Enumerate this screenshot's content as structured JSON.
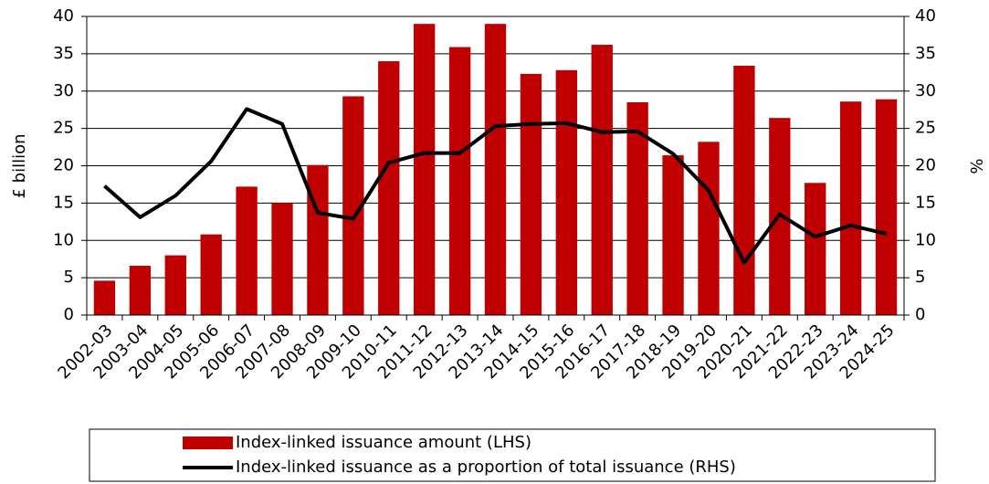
{
  "chart_data": {
    "type": "combo",
    "categories": [
      "2002-03",
      "2003-04",
      "2004-05",
      "2005-06",
      "2006-07",
      "2007-08",
      "2008-09",
      "2009-10",
      "2010-11",
      "2011-12",
      "2012-13",
      "2013-14",
      "2014-15",
      "2015-16",
      "2016-17",
      "2017-18",
      "2018-19",
      "2019-20",
      "2020-21",
      "2021-22",
      "2022-23",
      "2023-24",
      "2024-25"
    ],
    "series": [
      {
        "name": "Index-linked issuance amount (LHS)",
        "type": "bar",
        "color": "#c00000",
        "values": [
          4.6,
          6.6,
          8.0,
          10.8,
          17.2,
          15.0,
          20.1,
          29.3,
          34.0,
          39.0,
          35.9,
          39.0,
          32.3,
          32.8,
          36.2,
          28.5,
          21.4,
          23.2,
          33.4,
          26.4,
          17.7,
          28.6,
          28.9
        ]
      },
      {
        "name": "Index-linked issuance as a proportion of total issuance (RHS)",
        "type": "line",
        "color": "#000000",
        "axis": "y2",
        "values": [
          17.3,
          13.1,
          16.0,
          20.6,
          27.6,
          25.6,
          13.7,
          12.9,
          20.4,
          21.7,
          21.7,
          25.3,
          25.6,
          25.7,
          24.5,
          24.6,
          21.6,
          16.7,
          7.0,
          13.5,
          10.5,
          12.0,
          10.9
        ]
      }
    ],
    "ylabel": "£ billion",
    "y2label": "%",
    "ylim": [
      0,
      40
    ],
    "yticks": [
      0,
      5,
      10,
      15,
      20,
      25,
      30,
      35,
      40
    ],
    "y2lim": [
      0,
      40
    ],
    "y2ticks": [
      0,
      5,
      10,
      15,
      20,
      25,
      30,
      35,
      40
    ],
    "grid": true,
    "legend": "bottom"
  }
}
